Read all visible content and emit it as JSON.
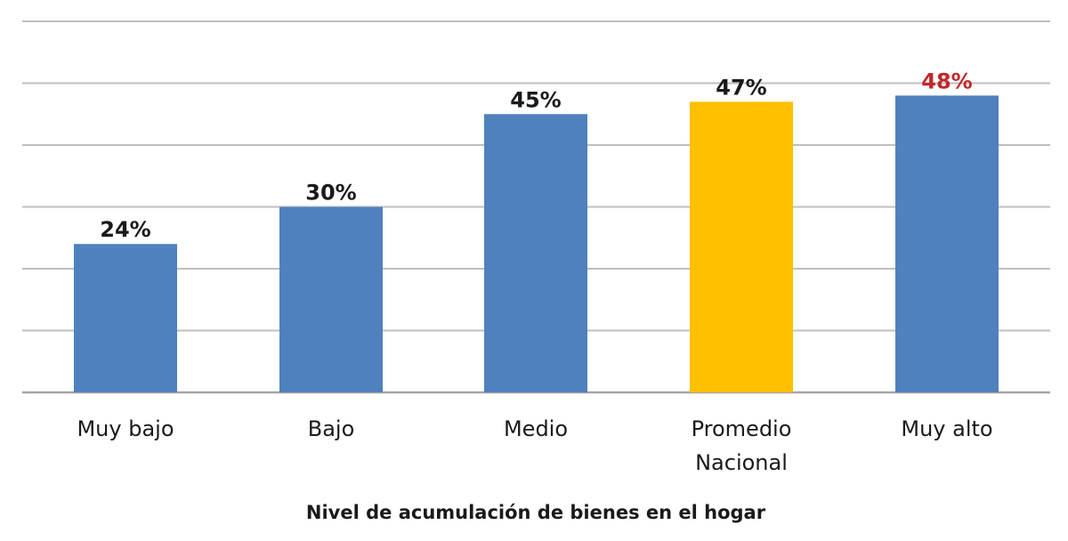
{
  "chart_data": {
    "type": "bar",
    "categories": [
      "Muy bajo",
      "Bajo",
      "Medio",
      "Promedio Nacional",
      "Muy alto"
    ],
    "category_lines": [
      [
        "Muy bajo"
      ],
      [
        "Bajo"
      ],
      [
        "Medio"
      ],
      [
        "Promedio",
        "Nacional"
      ],
      [
        "Muy alto"
      ]
    ],
    "values": [
      24,
      30,
      45,
      47,
      48
    ],
    "value_labels": [
      "24%",
      "30%",
      "45%",
      "47%",
      "48%"
    ],
    "bar_colors": [
      "#4f81bd",
      "#4f81bd",
      "#4f81bd",
      "#ffc000",
      "#4f81bd"
    ],
    "label_colors": [
      "#1a1a1a",
      "#1a1a1a",
      "#1a1a1a",
      "#1a1a1a",
      "#c0292b"
    ],
    "xlabel": "Nivel de acumulación de bienes en el hogar",
    "ylabel": "",
    "ylim": [
      0,
      60
    ],
    "y_gridlines": [
      0,
      10,
      20,
      30,
      40,
      50,
      60
    ],
    "grid": true,
    "legend": "none"
  }
}
